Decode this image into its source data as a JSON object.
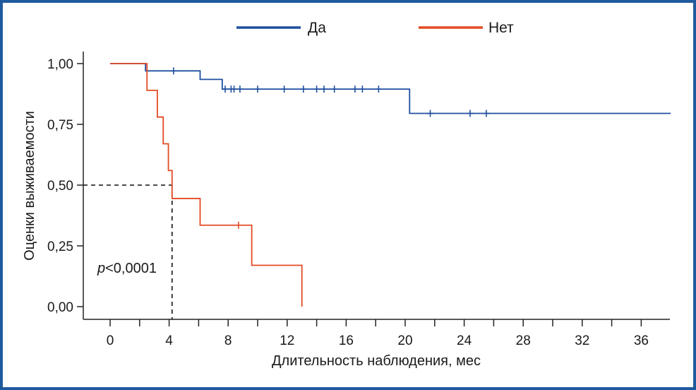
{
  "chart_data": {
    "type": "line",
    "subtype": "kaplan-meier",
    "title": "",
    "xlabel": "Длительность наблюдения, мес",
    "ylabel": "Оценки выживаемости",
    "xlim": [
      -3,
      38
    ],
    "ylim": [
      -0.05,
      1.05
    ],
    "x_ticks": [
      0,
      4,
      8,
      12,
      16,
      20,
      24,
      28,
      32,
      36
    ],
    "x_minor_ticks": [
      2,
      6,
      10,
      14,
      18,
      22,
      26,
      30,
      34
    ],
    "y_ticks": [
      {
        "value": 0,
        "label": "0,00"
      },
      {
        "value": 0.25,
        "label": "0,25"
      },
      {
        "value": 0.5,
        "label": "0,50"
      },
      {
        "value": 0.75,
        "label": "0,75"
      },
      {
        "value": 1.0,
        "label": "1,00"
      }
    ],
    "legend_position": "top",
    "annotation": {
      "text_italic": "p",
      "text": "<0,0001",
      "x": 0,
      "y": 0.16
    },
    "median_reference": {
      "x": 4.2,
      "y": 0.5
    },
    "series": [
      {
        "name": "Да",
        "color": "#1f4fa0",
        "steps": [
          [
            0,
            1.0
          ],
          [
            2.4,
            0.97
          ],
          [
            6.1,
            0.935
          ],
          [
            7.6,
            0.895
          ],
          [
            20.3,
            0.795
          ],
          [
            38,
            0.795
          ]
        ],
        "censored": [
          [
            4.3,
            0.97
          ],
          [
            7.8,
            0.895
          ],
          [
            8.2,
            0.895
          ],
          [
            8.4,
            0.895
          ],
          [
            8.8,
            0.895
          ],
          [
            10.0,
            0.895
          ],
          [
            11.8,
            0.895
          ],
          [
            13.1,
            0.895
          ],
          [
            14.0,
            0.895
          ],
          [
            14.5,
            0.895
          ],
          [
            15.2,
            0.895
          ],
          [
            16.6,
            0.895
          ],
          [
            17.1,
            0.895
          ],
          [
            18.2,
            0.895
          ],
          [
            21.7,
            0.795
          ],
          [
            24.4,
            0.795
          ],
          [
            25.5,
            0.795
          ]
        ]
      },
      {
        "name": "Нет",
        "color": "#e24a24",
        "steps": [
          [
            0,
            1.0
          ],
          [
            2.5,
            0.89
          ],
          [
            3.2,
            0.78
          ],
          [
            3.6,
            0.67
          ],
          [
            3.95,
            0.56
          ],
          [
            4.2,
            0.445
          ],
          [
            6.1,
            0.335
          ],
          [
            9.6,
            0.17
          ],
          [
            13.0,
            0.0
          ]
        ],
        "censored": [
          [
            8.7,
            0.335
          ]
        ]
      }
    ]
  }
}
